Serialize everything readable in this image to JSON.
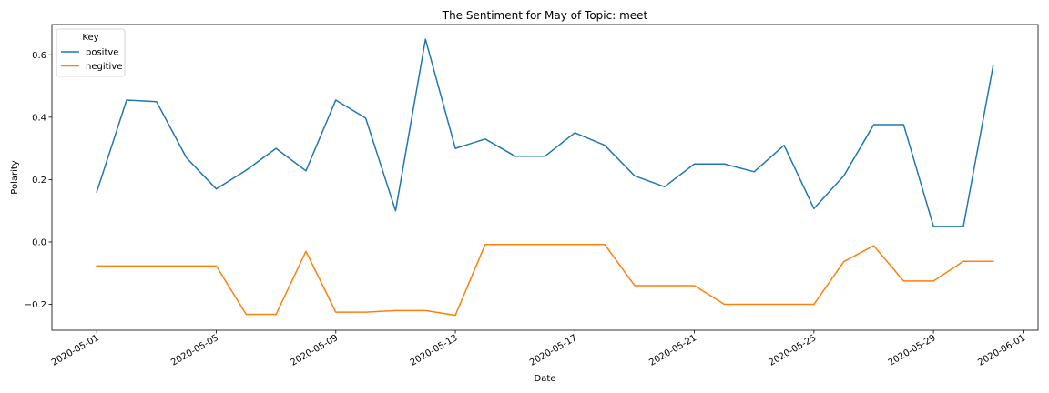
{
  "chart_data": {
    "type": "line",
    "title": "The Sentiment for May of Topic: meet",
    "xlabel": "Date",
    "ylabel": "Polarity",
    "x": [
      "2020-05-01",
      "2020-05-02",
      "2020-05-03",
      "2020-05-04",
      "2020-05-05",
      "2020-05-06",
      "2020-05-07",
      "2020-05-08",
      "2020-05-09",
      "2020-05-10",
      "2020-05-11",
      "2020-05-12",
      "2020-05-13",
      "2020-05-14",
      "2020-05-15",
      "2020-05-16",
      "2020-05-17",
      "2020-05-18",
      "2020-05-19",
      "2020-05-20",
      "2020-05-21",
      "2020-05-22",
      "2020-05-23",
      "2020-05-24",
      "2020-05-25",
      "2020-05-26",
      "2020-05-27",
      "2020-05-28",
      "2020-05-29",
      "2020-05-30",
      "2020-05-31"
    ],
    "series": [
      {
        "name": "positve",
        "color": "#1f77b4",
        "values": [
          0.16,
          0.455,
          0.45,
          0.27,
          0.17,
          0.23,
          0.3,
          0.228,
          0.455,
          0.397,
          0.1,
          0.65,
          0.3,
          0.33,
          0.275,
          0.275,
          0.35,
          0.31,
          0.212,
          0.177,
          0.25,
          0.25,
          0.225,
          0.31,
          0.107,
          0.212,
          0.376,
          0.376,
          0.05,
          0.05,
          0.567
        ]
      },
      {
        "name": "negitive",
        "color": "#ff7f0e",
        "values": [
          -0.077,
          -0.077,
          -0.077,
          -0.077,
          -0.077,
          -0.232,
          -0.232,
          -0.03,
          -0.225,
          -0.225,
          -0.22,
          -0.22,
          -0.235,
          -0.008,
          -0.008,
          -0.008,
          -0.008,
          -0.008,
          -0.14,
          -0.14,
          -0.14,
          -0.2,
          -0.2,
          -0.2,
          -0.2,
          -0.063,
          -0.012,
          -0.125,
          -0.125,
          -0.062,
          -0.062
        ]
      }
    ],
    "y_ticks": [
      -0.2,
      0.0,
      0.2,
      0.4,
      0.6
    ],
    "y_tick_labels": [
      "−0.2",
      "0.0",
      "0.2",
      "0.4",
      "0.6"
    ],
    "x_ticks": [
      "2020-05-01",
      "2020-05-05",
      "2020-05-09",
      "2020-05-13",
      "2020-05-17",
      "2020-05-21",
      "2020-05-25",
      "2020-05-29",
      "2020-06-01"
    ],
    "xlim": [
      "2020-04-29.5",
      "2020-06-01.5"
    ],
    "ylim": [
      -0.283,
      0.697
    ],
    "grid": false,
    "legend": {
      "title": "Key",
      "position": "top-left"
    }
  }
}
